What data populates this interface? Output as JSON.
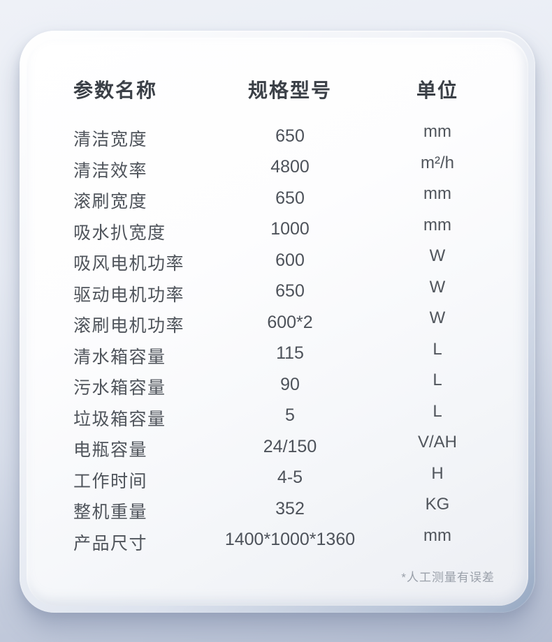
{
  "colors": {
    "background_top": "#eef1f7",
    "background_bottom": "#b5bed2",
    "card_surface": "#fdfdfe",
    "header_text": "#3b4047",
    "body_text": "#4f545b",
    "footnote_text": "#9aa0aa"
  },
  "table": {
    "headers": [
      "参数名称",
      "规格型号",
      "单位"
    ],
    "rows": [
      {
        "name": "清洁宽度",
        "value": "650",
        "unit": "mm"
      },
      {
        "name": "清洁效率",
        "value": "4800",
        "unit": "m²/h"
      },
      {
        "name": "滚刷宽度",
        "value": "650",
        "unit": "mm"
      },
      {
        "name": "吸水扒宽度",
        "value": "1000",
        "unit": "mm"
      },
      {
        "name": "吸风电机功率",
        "value": "600",
        "unit": "W"
      },
      {
        "name": "驱动电机功率",
        "value": "650",
        "unit": "W"
      },
      {
        "name": "滚刷电机功率",
        "value": "600*2",
        "unit": "W"
      },
      {
        "name": "清水箱容量",
        "value": "115",
        "unit": "L"
      },
      {
        "name": "污水箱容量",
        "value": "90",
        "unit": "L"
      },
      {
        "name": "垃圾箱容量",
        "value": "5",
        "unit": "L"
      },
      {
        "name": "电瓶容量",
        "value": "24/150",
        "unit": "V/AH"
      },
      {
        "name": "工作时间",
        "value": "4-5",
        "unit": "H"
      },
      {
        "name": "整机重量",
        "value": "352",
        "unit": "KG"
      },
      {
        "name": "产品尺寸",
        "value": "1400*1000*1360",
        "unit": "mm"
      }
    ]
  },
  "footnote": "*人工测量有误差"
}
